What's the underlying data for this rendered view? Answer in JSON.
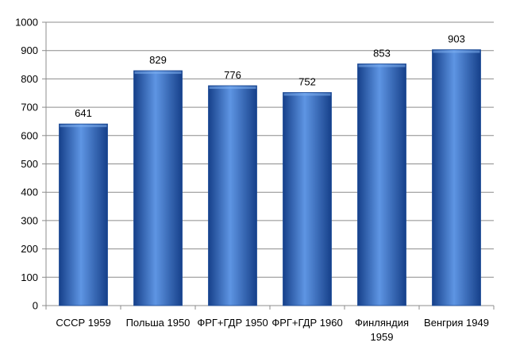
{
  "chart_data": {
    "type": "bar",
    "categories": [
      [
        "СССР 1959"
      ],
      [
        "Польша 1950"
      ],
      [
        "ФРГ+ГДР 1950"
      ],
      [
        "ФРГ+ГДР 1960"
      ],
      [
        "Финляндия",
        "1959"
      ],
      [
        "Венгрия 1949"
      ]
    ],
    "values": [
      641,
      829,
      776,
      752,
      853,
      903
    ],
    "data_labels": [
      "641",
      "829",
      "776",
      "752",
      "853",
      "903"
    ],
    "yticks": [
      0,
      100,
      200,
      300,
      400,
      500,
      600,
      700,
      800,
      900,
      1000
    ],
    "ylim": [
      0,
      1000
    ],
    "grid": true,
    "legend": "none",
    "bar_color": "#2f6cc7",
    "bar_color_dark": "#16408a",
    "bar_color_light": "#5e95e3"
  }
}
